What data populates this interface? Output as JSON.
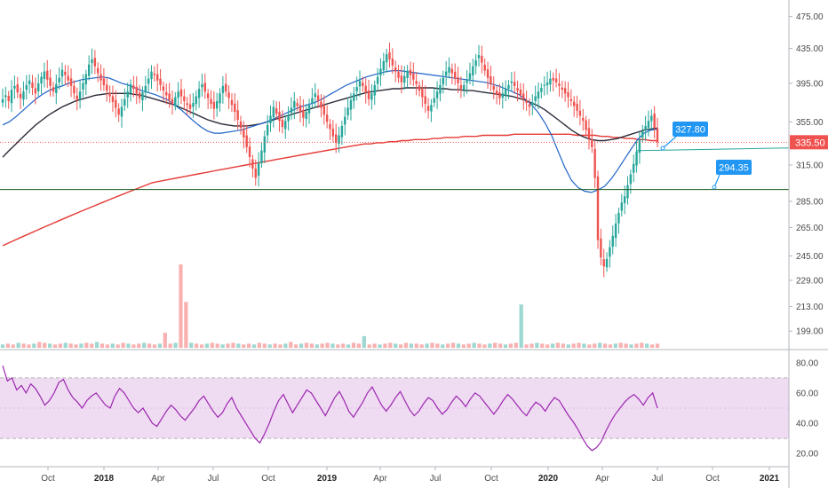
{
  "chart_data": {
    "type": "candlestick",
    "colors": {
      "up": "#26a69a",
      "down": "#ef5350",
      "ma200": "#e53935",
      "ma_fast": "#1e63c8",
      "ma_slow": "#2b2b3a",
      "rsi": "#9c27b0",
      "rsi_band": "#e1bee7",
      "callout": "#2196f3",
      "price_tag": "#ef5350"
    },
    "price_axis": {
      "ticks": [
        "475.00",
        "435.00",
        "395.00",
        "355.00",
        "315.00",
        "285.00",
        "265.00",
        "245.00",
        "229.00",
        "213.00",
        "199.00"
      ],
      "scale": "log"
    },
    "rsi_axis": {
      "ticks": [
        "80.00",
        "60.00",
        "40.00",
        "20.00"
      ],
      "band": [
        30,
        70
      ]
    },
    "x_axis": {
      "labels": [
        "Oct",
        "2018",
        "Apr",
        "Jul",
        "Oct",
        "2019",
        "Apr",
        "Jul",
        "Oct",
        "2020",
        "Apr",
        "Jul",
        "Oct",
        "2021"
      ],
      "bold": [
        "2018",
        "2019",
        "2020",
        "2021"
      ]
    },
    "last_price": "335.50",
    "support_line": 294.35,
    "annotations": [
      {
        "label": "327.80",
        "value": 327.8
      },
      {
        "label": "294.35",
        "value": 294.35
      }
    ],
    "candles_close": [
      378,
      382,
      376,
      388,
      392,
      385,
      379,
      386,
      393,
      398,
      390,
      384,
      395,
      402,
      408,
      399,
      392,
      386,
      394,
      401,
      410,
      404,
      398,
      392,
      384,
      377,
      386,
      395,
      405,
      416,
      422,
      414,
      406,
      398,
      393,
      387,
      381,
      375,
      369,
      362,
      370,
      378,
      386,
      394,
      389,
      384,
      379,
      385,
      392,
      400,
      408,
      404,
      398,
      393,
      387,
      382,
      377,
      373,
      380,
      386,
      381,
      376,
      372,
      368,
      374,
      381,
      389,
      394,
      386,
      379,
      373,
      368,
      376,
      384,
      392,
      386,
      379,
      372,
      365,
      357,
      349,
      340,
      331,
      322,
      312,
      304,
      317,
      328,
      341,
      352,
      361,
      370,
      363,
      356,
      350,
      356,
      362,
      369,
      376,
      371,
      365,
      359,
      365,
      372,
      379,
      384,
      376,
      369,
      362,
      355,
      348,
      341,
      335,
      342,
      351,
      360,
      369,
      377,
      384,
      391,
      398,
      392,
      385,
      378,
      384,
      393,
      402,
      411,
      420,
      428,
      422,
      415,
      408,
      401,
      396,
      403,
      409,
      404,
      399,
      394,
      387,
      380,
      373,
      366,
      372,
      379,
      386,
      393,
      401,
      408,
      413,
      406,
      400,
      395,
      389,
      393,
      399,
      406,
      414,
      421,
      427,
      418,
      409,
      401,
      394,
      388,
      383,
      379,
      384,
      389,
      393,
      397,
      392,
      387,
      382,
      378,
      374,
      370,
      375,
      381,
      386,
      390,
      393,
      396,
      400,
      398,
      396,
      392,
      388,
      384,
      380,
      376,
      371,
      366,
      361,
      356,
      347,
      339,
      331,
      304,
      256,
      244,
      238,
      243,
      251,
      259,
      268,
      276,
      284,
      289,
      298,
      307,
      316,
      327,
      338,
      346,
      351,
      356,
      361,
      349,
      335.5
    ],
    "ma200": [
      252,
      254,
      256,
      258,
      260,
      262,
      264,
      266,
      268,
      270,
      272,
      274,
      276,
      278,
      280,
      282,
      284,
      286,
      288,
      290,
      292,
      294,
      296,
      298,
      300,
      301,
      302,
      303,
      304,
      305,
      306,
      307,
      308,
      309,
      310,
      311,
      312,
      313,
      314,
      315,
      316,
      317,
      318,
      319,
      320,
      321,
      322,
      323,
      324,
      325,
      326,
      327,
      328,
      329,
      330,
      331,
      332,
      333,
      334,
      334,
      335,
      335,
      336,
      336,
      337,
      337,
      338,
      338,
      338,
      339,
      339,
      340,
      340,
      340,
      341,
      341,
      341,
      342,
      342,
      342,
      342,
      342,
      343,
      343,
      343,
      343,
      343,
      343,
      343,
      343,
      343,
      343,
      342,
      342,
      342,
      342,
      341,
      341,
      340,
      340,
      339,
      339,
      338,
      338,
      337,
      337
    ],
    "ma_fast": [
      352,
      355,
      360,
      366,
      372,
      378,
      383,
      387,
      390,
      392,
      395,
      397,
      399,
      400,
      401,
      402,
      401,
      398,
      395,
      393,
      390,
      387,
      385,
      383,
      380,
      377,
      372,
      367,
      361,
      355,
      350,
      346,
      344,
      344,
      345,
      346,
      347,
      349,
      351,
      353,
      355,
      358,
      361,
      364,
      367,
      370,
      372,
      374,
      377,
      381,
      385,
      389,
      393,
      396,
      399,
      402,
      404,
      406,
      408,
      409,
      409,
      408,
      407,
      406,
      405,
      404,
      403,
      402,
      401,
      400,
      399,
      398,
      397,
      396,
      394,
      392,
      389,
      386,
      383,
      378,
      372,
      364,
      354,
      342,
      327,
      313,
      302,
      296,
      293,
      292,
      294,
      297,
      303,
      311,
      320,
      329,
      338,
      344,
      347,
      348
    ],
    "ma_slow": [
      322,
      328,
      334,
      340,
      346,
      352,
      357,
      362,
      366,
      370,
      373,
      376,
      378,
      380,
      382,
      383,
      384,
      384,
      384,
      384,
      383,
      382,
      380,
      378,
      376,
      374,
      372,
      369,
      366,
      363,
      360,
      357,
      355,
      353,
      352,
      351,
      351,
      351,
      352,
      353,
      355,
      357,
      359,
      361,
      363,
      365,
      367,
      369,
      371,
      373,
      375,
      377,
      379,
      381,
      383,
      385,
      386,
      387,
      388,
      389,
      389,
      390,
      390,
      390,
      390,
      390,
      389,
      389,
      388,
      388,
      387,
      387,
      386,
      385,
      384,
      383,
      382,
      381,
      379,
      377,
      374,
      371,
      367,
      362,
      357,
      352,
      347,
      343,
      340,
      338,
      337,
      337,
      338,
      339,
      341,
      343,
      345,
      347,
      348,
      349
    ],
    "volume": [
      4,
      5,
      4,
      6,
      5,
      4,
      5,
      7,
      6,
      5,
      4,
      5,
      6,
      5,
      4,
      5,
      6,
      5,
      7,
      5,
      4,
      5,
      4,
      6,
      5,
      4,
      5,
      6,
      5,
      4,
      5,
      18,
      5,
      6,
      100,
      55,
      6,
      5,
      4,
      5,
      6,
      5,
      4,
      5,
      6,
      5,
      4,
      5,
      4,
      6,
      5,
      4,
      5,
      4,
      5,
      7,
      4,
      5,
      6,
      5,
      4,
      5,
      6,
      5,
      4,
      5,
      4,
      6,
      5,
      14,
      4,
      5,
      4,
      5,
      6,
      5,
      4,
      6,
      5,
      5,
      4,
      5,
      6,
      5,
      4,
      5,
      6,
      5,
      4,
      5,
      6,
      5,
      4,
      5,
      6,
      5,
      4,
      5,
      6,
      52,
      4,
      5,
      6,
      5,
      4,
      5,
      6,
      5,
      4,
      5,
      6,
      5,
      4,
      5,
      6,
      5,
      4,
      5,
      6,
      5,
      4,
      5,
      6,
      5,
      4,
      5
    ],
    "rsi": [
      78,
      68,
      70,
      62,
      65,
      60,
      66,
      63,
      58,
      52,
      55,
      60,
      67,
      69,
      62,
      57,
      54,
      50,
      55,
      58,
      60,
      56,
      52,
      50,
      58,
      63,
      60,
      55,
      50,
      47,
      50,
      45,
      40,
      38,
      43,
      48,
      52,
      49,
      45,
      42,
      46,
      50,
      55,
      58,
      53,
      48,
      44,
      47,
      53,
      57,
      50,
      45,
      40,
      35,
      30,
      27,
      33,
      40,
      48,
      55,
      59,
      53,
      47,
      52,
      57,
      62,
      60,
      55,
      50,
      45,
      51,
      57,
      61,
      55,
      48,
      44,
      49,
      54,
      60,
      64,
      58,
      52,
      48,
      52,
      57,
      61,
      55,
      49,
      45,
      48,
      53,
      57,
      55,
      50,
      46,
      49,
      54,
      58,
      55,
      51,
      56,
      60,
      58,
      54,
      50,
      46,
      50,
      55,
      59,
      56,
      52,
      48,
      45,
      50,
      54,
      52,
      48,
      53,
      57,
      55,
      50,
      45,
      41,
      36,
      30,
      25,
      22,
      24,
      28,
      35,
      41,
      46,
      50,
      54,
      57,
      59,
      56,
      52,
      57,
      60,
      50
    ]
  }
}
